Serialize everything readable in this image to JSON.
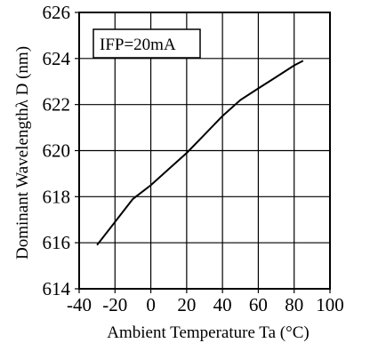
{
  "chart_data": {
    "type": "line",
    "title": "",
    "xlabel": "Ambient Temperature Ta (°C)",
    "ylabel": "Dominant Wavelengthλ D (nm)",
    "xlim": [
      -40,
      100
    ],
    "ylim": [
      614,
      626
    ],
    "xticks": [
      "-40",
      "-20",
      "0",
      "20",
      "40",
      "60",
      "80",
      "100"
    ],
    "yticks": [
      "614",
      "616",
      "618",
      "620",
      "622",
      "624",
      "626"
    ],
    "grid": true,
    "annotation": "IFP=20mA",
    "series": [
      {
        "x": [
          -30,
          -20,
          -10,
          0,
          10,
          20,
          30,
          40,
          50,
          60,
          70,
          80,
          85
        ],
        "values": [
          615.9,
          616.9,
          617.9,
          618.5,
          619.2,
          619.9,
          620.7,
          621.5,
          622.2,
          622.7,
          623.2,
          623.7,
          623.9
        ]
      }
    ]
  }
}
